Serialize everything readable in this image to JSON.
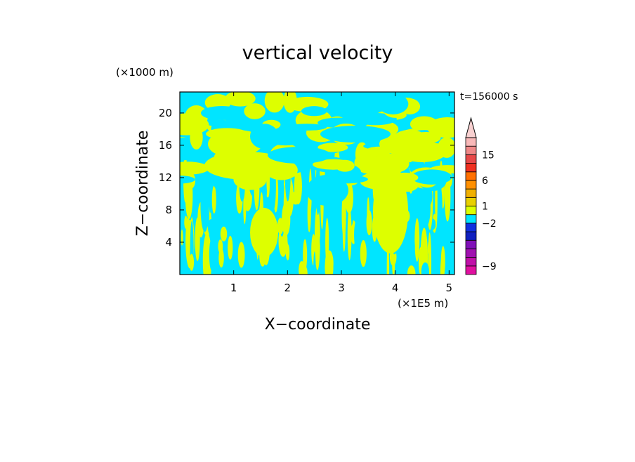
{
  "chart_data": {
    "type": "heatmap",
    "title": "vertical velocity",
    "xlabel": "X−coordinate",
    "ylabel": "Z−coordinate",
    "x_unit": "(×1E5 m)",
    "y_unit": "(×1000 m)",
    "time_label": "t=156000 s",
    "xlim": [
      0.0,
      5.1
    ],
    "ylim": [
      0.0,
      22.6
    ],
    "x_ticks": [
      1,
      2,
      3,
      4,
      5
    ],
    "x_tick_labels": [
      "1",
      "2",
      "3",
      "4",
      "5"
    ],
    "y_ticks": [
      4,
      8,
      12,
      16,
      20
    ],
    "y_tick_labels": [
      "4",
      "8",
      "12",
      "16",
      "20"
    ],
    "colors": {
      "negative_small": "#00e5ff",
      "positive_small": "#ddff00",
      "background": "#ffffff"
    },
    "colorbar": {
      "levels": [
        {
          "color": "#e010a0"
        },
        {
          "color": "#c010a8"
        },
        {
          "color": "#a010b0"
        },
        {
          "color": "#8010b8"
        },
        {
          "color": "#1020c0"
        },
        {
          "color": "#1030e0"
        },
        {
          "color": "#00e5ff"
        },
        {
          "color": "#ddff00"
        },
        {
          "color": "#e8d000"
        },
        {
          "color": "#f0b000"
        },
        {
          "color": "#ff9000"
        },
        {
          "color": "#ff7000"
        },
        {
          "color": "#f03020"
        },
        {
          "color": "#e84848"
        },
        {
          "color": "#f08888"
        },
        {
          "color": "#f8b8b8"
        }
      ],
      "extend_top_color": "#f8d0d0",
      "labels": [
        "15",
        "6",
        "1",
        "−2",
        "−9"
      ],
      "label_levels": [
        14,
        11,
        8,
        6,
        1
      ]
    }
  }
}
